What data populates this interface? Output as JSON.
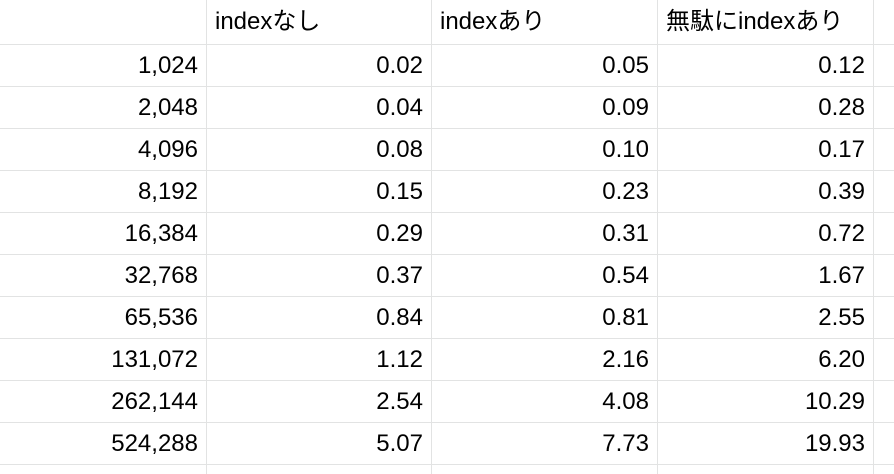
{
  "table": {
    "headers": [
      "",
      "indexなし",
      "indexあり",
      "無駄にindexあり"
    ],
    "rows": [
      [
        "1,024",
        "0.02",
        "0.05",
        "0.12"
      ],
      [
        "2,048",
        "0.04",
        "0.09",
        "0.28"
      ],
      [
        "4,096",
        "0.08",
        "0.10",
        "0.17"
      ],
      [
        "8,192",
        "0.15",
        "0.23",
        "0.39"
      ],
      [
        "16,384",
        "0.29",
        "0.31",
        "0.72"
      ],
      [
        "32,768",
        "0.37",
        "0.54",
        "1.67"
      ],
      [
        "65,536",
        "0.84",
        "0.81",
        "2.55"
      ],
      [
        "131,072",
        "1.12",
        "2.16",
        "6.20"
      ],
      [
        "262,144",
        "2.54",
        "4.08",
        "10.29"
      ],
      [
        "524,288",
        "5.07",
        "7.73",
        "19.93"
      ]
    ]
  },
  "colors": {
    "gridline": "#e2e3e3",
    "text": "#000000",
    "background": "#ffffff"
  }
}
